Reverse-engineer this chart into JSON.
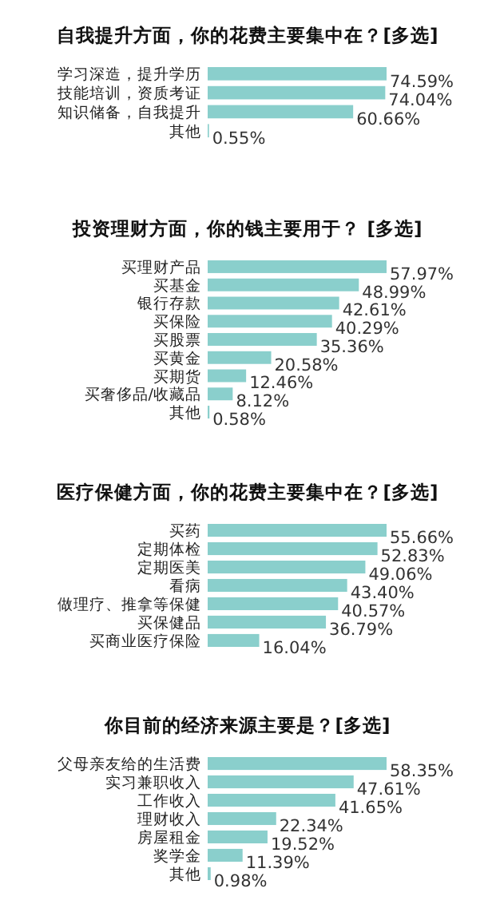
{
  "chart_data": [
    {
      "type": "bar",
      "orientation": "horizontal",
      "title": "自我提升方面，你的花费主要集中在？[多选]",
      "categories": [
        "学习深造，提升学历",
        "技能培训，资质考证",
        "知识储备，自我提升",
        "其他"
      ],
      "values": [
        74.59,
        74.04,
        60.66,
        0.55
      ],
      "value_labels": [
        "74.59%",
        "74.04%",
        "60.66%",
        "0.55%"
      ],
      "color": "#8acfcc"
    },
    {
      "type": "bar",
      "orientation": "horizontal",
      "title": "投资理财方面，你的钱主要用于？ [多选]",
      "categories": [
        "买理财产品",
        "买基金",
        "银行存款",
        "买保险",
        "买股票",
        "买黄金",
        "买期货",
        "买奢侈品/收藏品",
        "其他"
      ],
      "values": [
        57.97,
        48.99,
        42.61,
        40.29,
        35.36,
        20.58,
        12.46,
        8.12,
        0.58
      ],
      "value_labels": [
        "57.97%",
        "48.99%",
        "42.61%",
        "40.29%",
        "35.36%",
        "20.58%",
        "12.46%",
        "8.12%",
        "0.58%"
      ],
      "color": "#8acfcc"
    },
    {
      "type": "bar",
      "orientation": "horizontal",
      "title": "医疗保健方面，你的花费主要集中在？[多选]",
      "categories": [
        "买药",
        "定期体检",
        "定期医美",
        "看病",
        "做理疗、推拿等保健",
        "买保健品",
        "买商业医疗保险"
      ],
      "values": [
        55.66,
        52.83,
        49.06,
        43.4,
        40.57,
        36.79,
        16.04
      ],
      "value_labels": [
        "55.66%",
        "52.83%",
        "49.06%",
        "43.40%",
        "40.57%",
        "36.79%",
        "16.04%"
      ],
      "color": "#8acfcc"
    },
    {
      "type": "bar",
      "orientation": "horizontal",
      "title": "你目前的经济来源主要是？[多选]",
      "categories": [
        "父母亲友给的生活费",
        "实习兼职收入",
        "工作收入",
        "理财收入",
        "房屋租金",
        "奖学金",
        "其他"
      ],
      "values": [
        58.35,
        47.61,
        41.65,
        22.34,
        19.52,
        11.39,
        0.98
      ],
      "value_labels": [
        "58.35%",
        "47.61%",
        "41.65%",
        "22.34%",
        "19.52%",
        "11.39%",
        "0.98%"
      ],
      "color": "#8acfcc"
    }
  ]
}
